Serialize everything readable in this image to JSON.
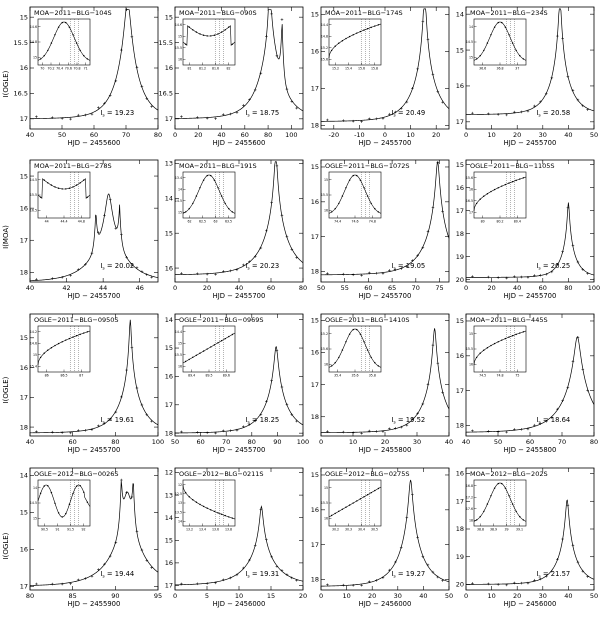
{
  "figure": {
    "row_ylabels": [
      "I(OGLE)",
      "I(MOA)",
      "I(OGLE)",
      "I(OGLE)"
    ]
  },
  "chart_data": [
    {
      "type": "line",
      "title": "MOA−2011−BLG−104S",
      "xlabel": "HJD − 2455600",
      "is_label": "I",
      "is_value": "= 19.23",
      "xlim": [
        40,
        80
      ],
      "xticks": [
        40,
        50,
        60,
        70,
        80
      ],
      "ylim": [
        17.2,
        14.8
      ],
      "yticks": [
        15,
        15.5,
        16,
        16.5,
        17
      ],
      "t0": 70.5,
      "u0": 0.12,
      "tE": 7,
      "base": 17.0,
      "caustic": [],
      "inset": {
        "xlim": [
          70,
          71
        ],
        "xticks": [
          "70",
          "70.2",
          "70.4",
          "70.6",
          "70.8",
          "71"
        ],
        "ylim": [
          15.0,
          14.6
        ],
        "yticks": [
          "14.6",
          "14.8",
          "15"
        ],
        "mode": "peak",
        "c": 70.3,
        "w": 0.4
      }
    },
    {
      "type": "line",
      "title": "MOA−2011−BLG−090S",
      "xlabel": "HJD − 2455600",
      "is_label": "I",
      "is_value": "= 18.75",
      "xlim": [
        0,
        110
      ],
      "xticks": [
        0,
        20,
        40,
        60,
        80,
        100
      ],
      "ylim": [
        17.2,
        14.8
      ],
      "yticks": [
        15,
        15.5,
        16,
        16.5,
        17
      ],
      "t0": 82,
      "u0": 0.2,
      "tE": 20,
      "base": 17.0,
      "caustic": [
        [
          81.4,
          14.85
        ],
        [
          92,
          14.85
        ]
      ],
      "inset": {
        "xlim": [
          81,
          82.6
        ],
        "xticks": [
          "81",
          "81.2",
          "81.6",
          "82"
        ],
        "ylim": [
          16.0,
          14.6
        ],
        "yticks": [
          "14.6",
          "15",
          "15.5",
          "16"
        ],
        "mode": "bowl",
        "c": 81.8,
        "w": 0.8
      }
    },
    {
      "type": "line",
      "title": "MOA−2011−BLG−174S",
      "xlabel": "HJD − 2455700",
      "is_label": "I",
      "is_value": "= 20.49",
      "xlim": [
        -25,
        25
      ],
      "xticks": [
        -20,
        -10,
        0,
        10,
        20
      ],
      "ylim": [
        18.1,
        14.8
      ],
      "yticks": [
        15,
        16,
        17,
        18
      ],
      "t0": 15.5,
      "u0": 0.04,
      "tE": 10,
      "base": 17.9,
      "caustic": [],
      "inset": {
        "xlim": [
          15.2,
          15.9
        ],
        "xticks": [
          "15.2",
          "15.4",
          "15.6",
          "15.8"
        ],
        "ylim": [
          15.6,
          14.4
        ],
        "yticks": [
          "14.4",
          "14.8",
          "15.2",
          "15.6"
        ],
        "mode": "rise",
        "c": 15.9,
        "w": 0.7
      }
    },
    {
      "type": "line",
      "title": "MOA−2011−BLG−234S",
      "xlabel": "HJD − 2455700",
      "is_label": "I",
      "is_value": "= 20.58",
      "xlim": [
        0,
        50
      ],
      "xticks": [
        0,
        10,
        20,
        30,
        40,
        50
      ],
      "ylim": [
        17.2,
        13.8
      ],
      "yticks": [
        14,
        15,
        16,
        17
      ],
      "t0": 36.7,
      "u0": 0.05,
      "tE": 8,
      "base": 16.8,
      "caustic": [],
      "inset": {
        "xlim": [
          36.5,
          37.0
        ],
        "xticks": [
          "36.6",
          "36.8",
          "37"
        ],
        "ylim": [
          15.0,
          14.0
        ],
        "yticks": [
          "14",
          "14.5",
          "15"
        ],
        "mode": "peak",
        "c": 36.75,
        "w": 0.3
      }
    },
    {
      "type": "line",
      "title": "MOA−2011−BLG−278S",
      "xlabel": "HJD − 2455700",
      "is_label": "I",
      "is_value": "= 20.02",
      "xlim": [
        40,
        47
      ],
      "xticks": [
        40,
        42,
        44,
        46
      ],
      "ylim": [
        18.3,
        14.5
      ],
      "yticks": [
        15,
        16,
        17,
        18
      ],
      "t0": 44.3,
      "u0": 0.08,
      "tE": 1.8,
      "base": 18.3,
      "caustic": [
        [
          43.6,
          14.75
        ],
        [
          44.9,
          14.75
        ]
      ],
      "inset": {
        "xlim": [
          44,
          45.1
        ],
        "xticks": [
          "44",
          "44.4",
          "44.8"
        ],
        "ylim": [
          16.5,
          14.5
        ],
        "yticks": [
          "14.5",
          "15.5",
          "16.5"
        ],
        "mode": "bowl",
        "c": 44.5,
        "w": 0.9
      }
    },
    {
      "type": "line",
      "title": "MOA−2011−BLG−191S",
      "xlabel": "HJD − 2455700",
      "is_label": "I",
      "is_value": "= 20.23",
      "xlim": [
        0,
        80
      ],
      "xticks": [
        0,
        20,
        40,
        60,
        80
      ],
      "ylim": [
        16.4,
        12.9
      ],
      "yticks": [
        13,
        14,
        15,
        16
      ],
      "t0": 63,
      "u0": 0.04,
      "tE": 18,
      "base": 16.2,
      "caustic": [],
      "inset": {
        "xlim": [
          62,
          63.8
        ],
        "xticks": [
          "62",
          "62.5",
          "63",
          "63.5"
        ],
        "ylim": [
          15.0,
          13.4
        ],
        "yticks": [
          "13.4",
          "14",
          "14.5",
          "15"
        ],
        "mode": "peak",
        "c": 62.9,
        "w": 1.0
      }
    },
    {
      "type": "line",
      "title": "OGLE−2011−BLG−1072S",
      "xlabel": "HJD − 2455700",
      "is_label": "I",
      "is_value": "= 19.05",
      "xlim": [
        50,
        77
      ],
      "xticks": [
        50,
        55,
        60,
        65,
        70,
        75
      ],
      "ylim": [
        18.3,
        14.8
      ],
      "yticks": [
        15,
        16,
        17,
        18
      ],
      "t0": 74.6,
      "u0": 0.05,
      "tE": 6,
      "base": 18.1,
      "caustic": [],
      "inset": {
        "xlim": [
          74.3,
          74.9
        ],
        "xticks": [
          "74.4",
          "74.6",
          "74.8"
        ],
        "ylim": [
          16.0,
          15.0
        ],
        "yticks": [
          "15",
          "15.5",
          "16"
        ],
        "mode": "peak",
        "c": 74.55,
        "w": 0.35
      }
    },
    {
      "type": "line",
      "title": "OGLE−2011−BLG−1105S",
      "xlabel": "HJD − 2455700",
      "is_label": "I",
      "is_value": "= 20.25",
      "xlim": [
        0,
        100
      ],
      "xticks": [
        0,
        20,
        40,
        60,
        80,
        100
      ],
      "ylim": [
        20.1,
        14.8
      ],
      "yticks": [
        15,
        16,
        17,
        18,
        19,
        20
      ],
      "t0": 80,
      "u0": 0.05,
      "tE": 12,
      "base": 19.9,
      "caustic": [],
      "inset": {
        "xlim": [
          79.9,
          80.5
        ],
        "xticks": [
          "80",
          "80.2",
          "80.4"
        ],
        "ylim": [
          17.0,
          15.6
        ],
        "yticks": [
          "15.6",
          "16",
          "16.5",
          "17"
        ],
        "mode": "rise",
        "c": 80.3,
        "w": 0.5
      }
    },
    {
      "type": "line",
      "title": "OGLE−2011−BLG−0950S",
      "xlabel": "HJD − 2455700",
      "is_label": "I",
      "is_value": "= 19.61",
      "xlim": [
        40,
        100
      ],
      "xticks": [
        40,
        60,
        80,
        100
      ],
      "ylim": [
        18.3,
        14.2
      ],
      "yticks": [
        15,
        16,
        17,
        18
      ],
      "t0": 87,
      "u0": 0.03,
      "tE": 12,
      "base": 18.2,
      "caustic": [],
      "inset": {
        "xlim": [
          85.5,
          87
        ],
        "xticks": [
          "86",
          "86.5",
          "87"
        ],
        "ylim": [
          15.4,
          14.2
        ],
        "yticks": [
          "14.2",
          "14.6",
          "15",
          "15.4"
        ],
        "mode": "rise",
        "c": 86.8,
        "w": 0.8
      }
    },
    {
      "type": "line",
      "title": "OGLE−2011−BLG−0969S",
      "xlabel": "HJD − 2455700",
      "is_label": "I",
      "is_value": "= 18.25",
      "xlim": [
        50,
        100
      ],
      "xticks": [
        50,
        60,
        70,
        80,
        90,
        100
      ],
      "ylim": [
        18.1,
        13.8
      ],
      "yticks": [
        14,
        15,
        16,
        17,
        18
      ],
      "t0": 89.5,
      "u0": 0.06,
      "tE": 10,
      "base": 18.0,
      "caustic": [],
      "inset": {
        "xlim": [
          89.3,
          89.7
        ],
        "xticks": [
          "89.4",
          "89.5",
          "89.6"
        ],
        "ylim": [
          16.0,
          14.4
        ],
        "yticks": [
          "14.4",
          "15",
          "15.5",
          "16"
        ],
        "mode": "linear",
        "c": 89.5,
        "w": 0.4
      }
    },
    {
      "type": "line",
      "title": "OGLE−2011−BLG−1410S",
      "xlabel": "HJD − 2455800",
      "is_label": "I",
      "is_value": "= 19.52",
      "xlim": [
        0,
        40
      ],
      "xticks": [
        0,
        10,
        20,
        30,
        40
      ],
      "ylim": [
        18.6,
        14.8
      ],
      "yticks": [
        15,
        16,
        17,
        18
      ],
      "t0": 35.5,
      "u0": 0.05,
      "tE": 8,
      "base": 18.5,
      "caustic": [],
      "inset": {
        "xlim": [
          35.3,
          35.8
        ],
        "xticks": [
          "35.4",
          "35.6",
          "35.8"
        ],
        "ylim": [
          16.2,
          15.2
        ],
        "yticks": [
          "15.2",
          "15.6",
          "16"
        ],
        "mode": "peak",
        "c": 35.55,
        "w": 0.35
      }
    },
    {
      "type": "line",
      "title": "MOA−2011−BLG−445S",
      "xlabel": "HJD − 2455800",
      "is_label": "I",
      "is_value": "= 18.64",
      "xlim": [
        40,
        80
      ],
      "xticks": [
        40,
        50,
        60,
        70,
        80
      ],
      "ylim": [
        18.3,
        14.8
      ],
      "yticks": [
        15,
        16,
        17,
        18
      ],
      "t0": 74.8,
      "u0": 0.08,
      "tE": 10,
      "base": 18.2,
      "caustic": [],
      "inset": {
        "xlim": [
          74.4,
          75.2
        ],
        "xticks": [
          "74.5",
          "74.8",
          "75"
        ],
        "ylim": [
          16.0,
          15.0
        ],
        "yticks": [
          "15",
          "15.5",
          "16"
        ],
        "mode": "rise",
        "c": 74.9,
        "w": 0.7
      }
    },
    {
      "type": "line",
      "title": "OGLE−2012−BLG−0026S",
      "xlabel": "HJD − 2455900",
      "is_label": "I",
      "is_value": "= 19.44",
      "xlim": [
        80,
        95
      ],
      "xticks": [
        80,
        85,
        90,
        95
      ],
      "ylim": [
        17.1,
        13.8
      ],
      "yticks": [
        14,
        15,
        16,
        17
      ],
      "t0": 91.4,
      "u0": 0.1,
      "tE": 4,
      "base": 17.0,
      "caustic": [
        [
          90.7,
          14.15
        ],
        [
          92.1,
          14.15
        ]
      ],
      "inset": {
        "xlim": [
          90.5,
          92.4
        ],
        "xticks": [
          "90.5",
          "91",
          "91.5",
          "92"
        ],
        "ylim": [
          15.0,
          14.0
        ],
        "yticks": [
          "14",
          "14.5",
          "15"
        ],
        "mode": "double",
        "c": 91.4,
        "w": 1.6
      }
    },
    {
      "type": "line",
      "title": "OGLE−2012−BLG−0211S",
      "xlabel": "HJD − 2456000",
      "is_label": "I",
      "is_value": "= 19.31",
      "xlim": [
        0,
        20
      ],
      "xticks": [
        0,
        5,
        10,
        15,
        20
      ],
      "ylim": [
        17.2,
        11.8
      ],
      "yticks": [
        12,
        13,
        14,
        15,
        16,
        17
      ],
      "t0": 13.5,
      "u0": 0.04,
      "tE": 5,
      "base": 17.0,
      "caustic": [],
      "inset": {
        "xlim": [
          13.1,
          13.9
        ],
        "xticks": [
          "13.2",
          "13.4",
          "13.6",
          "13.8"
        ],
        "ylim": [
          14.0,
          12.0
        ],
        "yticks": [
          "12",
          "12.5",
          "13",
          "13.5",
          "14"
        ],
        "mode": "fall",
        "c": 13.2,
        "w": 0.6
      }
    },
    {
      "type": "line",
      "title": "OGLE−2012−BLG−0275S",
      "xlabel": "HJD − 2456000",
      "is_label": "I",
      "is_value": "= 19.27",
      "xlim": [
        0,
        50
      ],
      "xticks": [
        0,
        10,
        20,
        30,
        40,
        50
      ],
      "ylim": [
        18.3,
        14.8
      ],
      "yticks": [
        15,
        16,
        17,
        18
      ],
      "t0": 35,
      "u0": 0.06,
      "tE": 10,
      "base": 18.2,
      "caustic": [],
      "inset": {
        "xlim": [
          30.2,
          30.6
        ],
        "xticks": [
          "30.2",
          "30.3",
          "30.4",
          "30.5"
        ],
        "ylim": [
          16.0,
          15.0
        ],
        "yticks": [
          "15",
          "15.5",
          "16"
        ],
        "mode": "linear",
        "c": 30.4,
        "w": 0.4
      }
    },
    {
      "type": "line",
      "title": "MOA−2012−BLG−202S",
      "xlabel": "HJD − 2456000",
      "is_label": "I",
      "is_value": "= 21.57",
      "xlim": [
        0,
        50
      ],
      "xticks": [
        0,
        10,
        20,
        30,
        40,
        50
      ],
      "ylim": [
        20.2,
        15.8
      ],
      "yticks": [
        16,
        17,
        18,
        19,
        20
      ],
      "t0": 39.5,
      "u0": 0.06,
      "tE": 8,
      "base": 20.0,
      "caustic": [],
      "inset": {
        "xlim": [
          38.7,
          39.1
        ],
        "xticks": [
          "38.8",
          "38.9",
          "39",
          "39.1"
        ],
        "ylim": [
          18.0,
          16.8
        ],
        "yticks": [
          "16.8",
          "17.2",
          "17.6",
          "18"
        ],
        "mode": "peak",
        "c": 38.95,
        "w": 0.3
      }
    }
  ]
}
